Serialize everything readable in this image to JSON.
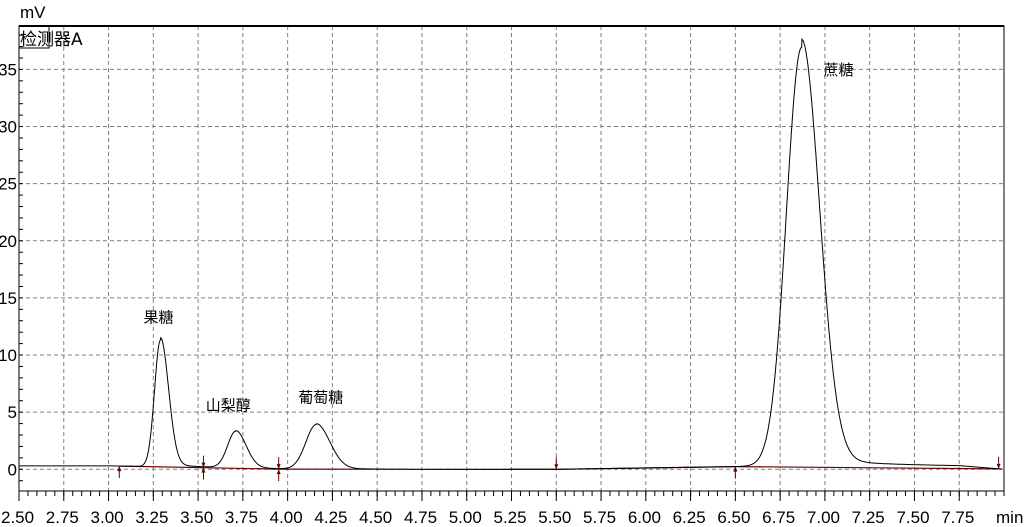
{
  "chart_data": {
    "type": "line",
    "title": "",
    "detector_label": "检测器A",
    "ylabel": "mV",
    "xlabel": "min",
    "xlim": [
      2.5,
      8.0
    ],
    "ylim": [
      -1.9,
      38.8
    ],
    "grid": true,
    "x_ticks": [
      "2.50",
      "2.75",
      "3.00",
      "3.25",
      "3.50",
      "3.75",
      "4.00",
      "4.25",
      "4.50",
      "4.75",
      "5.00",
      "5.25",
      "5.50",
      "5.75",
      "6.00",
      "6.25",
      "6.50",
      "6.75",
      "7.00",
      "7.25",
      "7.50",
      "7.75"
    ],
    "y_ticks": [
      "0",
      "5",
      "10",
      "15",
      "20",
      "25",
      "30",
      "35"
    ],
    "peaks": [
      {
        "name": "果糖",
        "rt": 3.29,
        "height": 11.1,
        "sigma_left": 0.033,
        "sigma_right": 0.045
      },
      {
        "name": "山梨醇",
        "rt": 3.71,
        "height": 3.2,
        "sigma_left": 0.045,
        "sigma_right": 0.058
      },
      {
        "name": "葡萄糖",
        "rt": 4.16,
        "height": 3.9,
        "sigma_left": 0.058,
        "sigma_right": 0.075
      },
      {
        "name": "蔗糖",
        "rt": 6.87,
        "height": 36.6,
        "sigma_left": 0.085,
        "sigma_right": 0.1
      }
    ],
    "baseline": [
      [
        2.5,
        0.3
      ],
      [
        3.0,
        0.3
      ],
      [
        3.5,
        0.15
      ],
      [
        4.0,
        0.0
      ],
      [
        5.5,
        0.0
      ],
      [
        7.2,
        0.4
      ],
      [
        7.75,
        0.3
      ],
      [
        8.0,
        0.0
      ]
    ],
    "integration_markers": [
      {
        "time": 3.06,
        "direction": "up"
      },
      {
        "time": 3.53,
        "direction": "both"
      },
      {
        "time": 3.95,
        "direction": "both"
      },
      {
        "time": 5.5,
        "direction": "down"
      },
      {
        "time": 6.5,
        "direction": "up"
      },
      {
        "time": 7.97,
        "direction": "down"
      }
    ],
    "colors": {
      "trace": "#000000",
      "baseline": "#6b0000",
      "grid": "#808080"
    }
  }
}
